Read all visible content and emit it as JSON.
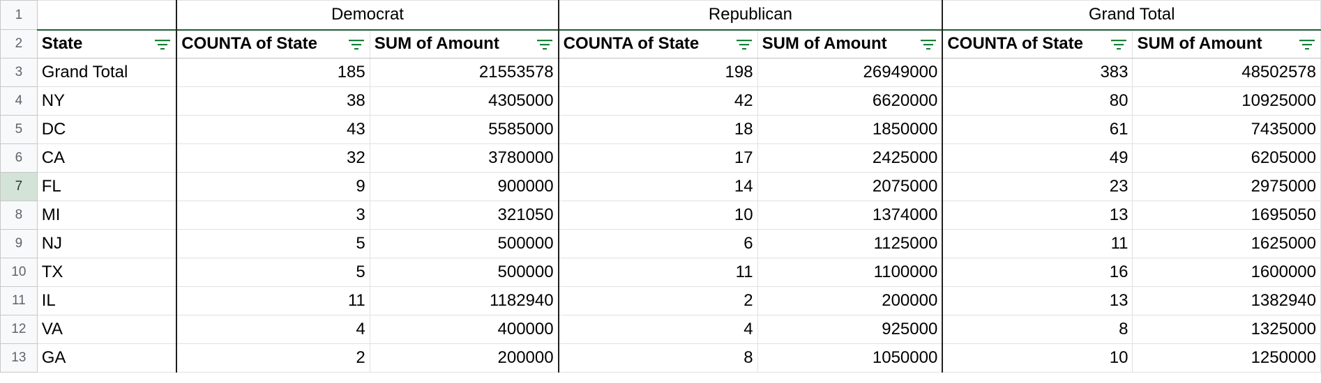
{
  "colors": {
    "header_border": "#1e5c34",
    "filter_icon": "#188038",
    "row_header_bg": "#f8f9fa",
    "selected_row_header_bg": "#d3e3d7"
  },
  "rows": [
    "1",
    "2",
    "3",
    "4",
    "5",
    "6",
    "7",
    "8",
    "9",
    "10",
    "11",
    "12",
    "13"
  ],
  "selected_row": "7",
  "group_headers": [
    "Democrat",
    "Republican",
    "Grand Total"
  ],
  "column_headers": [
    "State",
    "COUNTA of State",
    "SUM of Amount",
    "COUNTA of State",
    "SUM of Amount",
    "COUNTA of State",
    "SUM of Amount"
  ],
  "data_rows": [
    [
      "Grand Total",
      "185",
      "21553578",
      "198",
      "26949000",
      "383",
      "48502578"
    ],
    [
      "NY",
      "38",
      "4305000",
      "42",
      "6620000",
      "80",
      "10925000"
    ],
    [
      "DC",
      "43",
      "5585000",
      "18",
      "1850000",
      "61",
      "7435000"
    ],
    [
      "CA",
      "32",
      "3780000",
      "17",
      "2425000",
      "49",
      "6205000"
    ],
    [
      "FL",
      "9",
      "900000",
      "14",
      "2075000",
      "23",
      "2975000"
    ],
    [
      "MI",
      "3",
      "321050",
      "10",
      "1374000",
      "13",
      "1695050"
    ],
    [
      "NJ",
      "5",
      "500000",
      "6",
      "1125000",
      "11",
      "1625000"
    ],
    [
      "TX",
      "5",
      "500000",
      "11",
      "1100000",
      "16",
      "1600000"
    ],
    [
      "IL",
      "11",
      "1182940",
      "2",
      "200000",
      "13",
      "1382940"
    ],
    [
      "VA",
      "4",
      "400000",
      "4",
      "925000",
      "8",
      "1325000"
    ],
    [
      "GA",
      "2",
      "200000",
      "8",
      "1050000",
      "10",
      "1250000"
    ]
  ]
}
